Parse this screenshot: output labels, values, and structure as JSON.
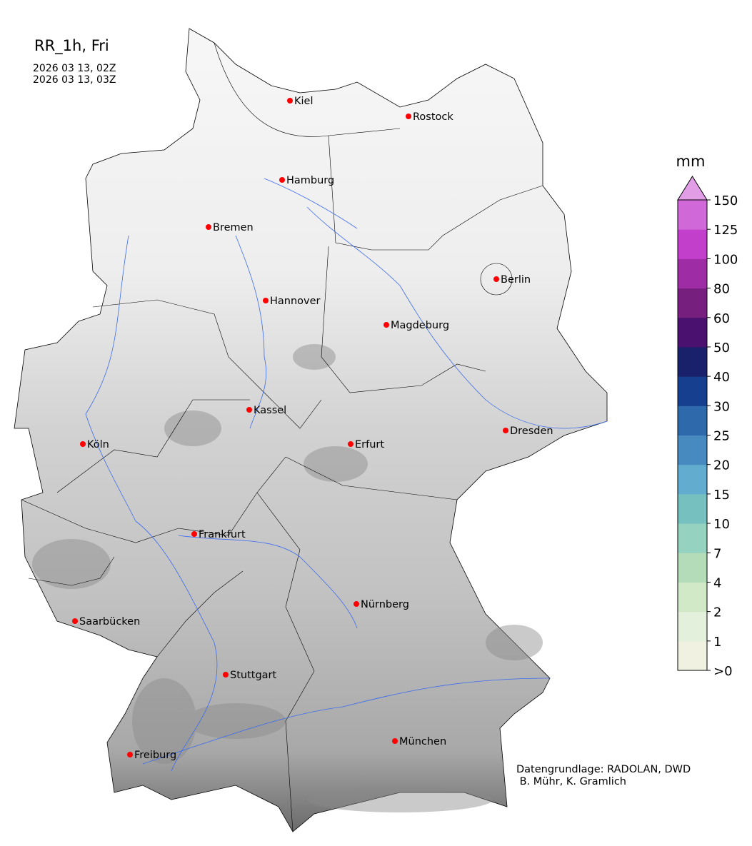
{
  "header": {
    "title": "RR_1h, Fri",
    "time_start": "2026 03 13, 02Z",
    "time_end": "2026 03 13, 03Z"
  },
  "map": {
    "region": "Germany",
    "background": "terrain-shaded-gray",
    "precipitation_visible": false,
    "city_marker_color": "#ff0000",
    "river_color": "#3b6cf0",
    "cities": [
      {
        "name": "Kiel"
      },
      {
        "name": "Rostock"
      },
      {
        "name": "Hamburg"
      },
      {
        "name": "Bremen"
      },
      {
        "name": "Berlin"
      },
      {
        "name": "Hannover"
      },
      {
        "name": "Magdeburg"
      },
      {
        "name": "Kassel"
      },
      {
        "name": "Köln"
      },
      {
        "name": "Erfurt"
      },
      {
        "name": "Dresden"
      },
      {
        "name": "Frankfurt"
      },
      {
        "name": "Nürnberg"
      },
      {
        "name": "Saarbücken"
      },
      {
        "name": "Stuttgart"
      },
      {
        "name": "München"
      },
      {
        "name": "Freiburg"
      }
    ]
  },
  "colorbar": {
    "unit": "mm",
    "extend": "max",
    "ticks": [
      ">0",
      "1",
      "2",
      "4",
      "7",
      "10",
      "15",
      "20",
      "25",
      "30",
      "40",
      "50",
      "60",
      "80",
      "100",
      "125",
      "150"
    ],
    "colors": [
      "#f1f1e1",
      "#e3f1dc",
      "#d2e9c8",
      "#b4dcb9",
      "#96d2c0",
      "#76c0c0",
      "#62adcf",
      "#468ac0",
      "#2e69ab",
      "#173f8f",
      "#18216a",
      "#4a116e",
      "#771f7f",
      "#9e2ca5",
      "#c13fca",
      "#d068d8"
    ],
    "over_color": "#e19ee6"
  },
  "credits": {
    "line1": "Datengrundlage: RADOLAN, DWD",
    "line2": " B. Mühr, K. Gramlich"
  }
}
